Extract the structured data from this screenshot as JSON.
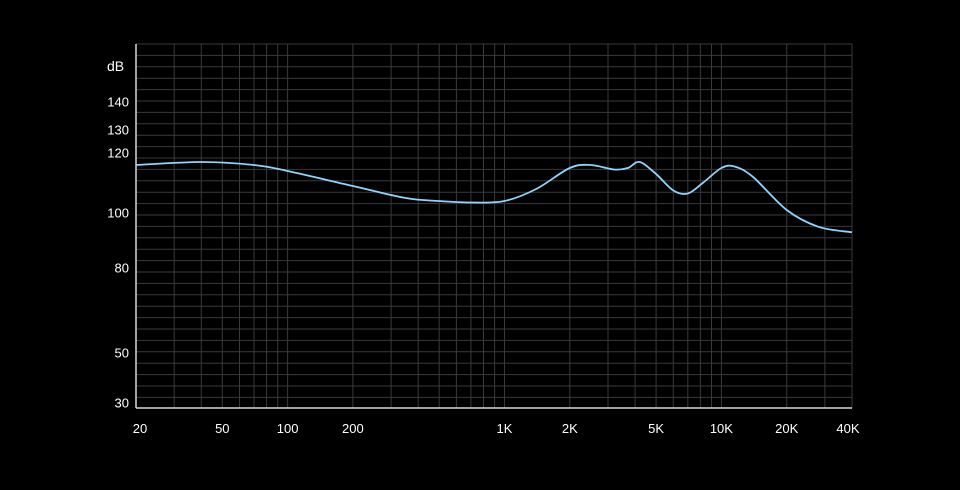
{
  "chart_data": {
    "type": "line",
    "y_unit_label": "dB",
    "x_scale": "log",
    "xlim": [
      20,
      40000
    ],
    "x_tick_labels": [
      {
        "value": 20,
        "label": "20"
      },
      {
        "value": 50,
        "label": "50"
      },
      {
        "value": 100,
        "label": "100"
      },
      {
        "value": 200,
        "label": "200"
      },
      {
        "value": 1000,
        "label": "1K"
      },
      {
        "value": 2000,
        "label": "2K"
      },
      {
        "value": 5000,
        "label": "5K"
      },
      {
        "value": 10000,
        "label": "10K"
      },
      {
        "value": 20000,
        "label": "20K"
      },
      {
        "value": 40000,
        "label": "40K"
      }
    ],
    "y_tick_labels": [
      {
        "value": 30,
        "label": "30"
      },
      {
        "value": 50,
        "label": "50"
      },
      {
        "value": 80,
        "label": "80"
      },
      {
        "value": 100,
        "label": "100"
      },
      {
        "value": 120,
        "label": "120"
      },
      {
        "value": 130,
        "label": "130"
      },
      {
        "value": 140,
        "label": "140"
      }
    ],
    "grid": true,
    "colors": {
      "background": "#000000",
      "line": "#8fd3ff",
      "grid": "#3a3a3a",
      "axis": "#d8d8d8"
    },
    "series": [
      {
        "values": [
          {
            "x": 20,
            "y": 116
          },
          {
            "x": 40,
            "y": 117
          },
          {
            "x": 70,
            "y": 116
          },
          {
            "x": 100,
            "y": 114
          },
          {
            "x": 200,
            "y": 109
          },
          {
            "x": 350,
            "y": 105
          },
          {
            "x": 500,
            "y": 104
          },
          {
            "x": 700,
            "y": 103.5
          },
          {
            "x": 1000,
            "y": 104
          },
          {
            "x": 1400,
            "y": 108
          },
          {
            "x": 2000,
            "y": 115
          },
          {
            "x": 2500,
            "y": 116
          },
          {
            "x": 3200,
            "y": 114.5
          },
          {
            "x": 3700,
            "y": 115
          },
          {
            "x": 4200,
            "y": 117
          },
          {
            "x": 5000,
            "y": 113
          },
          {
            "x": 6000,
            "y": 107.5
          },
          {
            "x": 7000,
            "y": 106.5
          },
          {
            "x": 8200,
            "y": 110
          },
          {
            "x": 10000,
            "y": 115
          },
          {
            "x": 11500,
            "y": 115.5
          },
          {
            "x": 14000,
            "y": 112
          },
          {
            "x": 20000,
            "y": 101
          },
          {
            "x": 28000,
            "y": 95
          },
          {
            "x": 40000,
            "y": 93
          }
        ]
      }
    ]
  }
}
